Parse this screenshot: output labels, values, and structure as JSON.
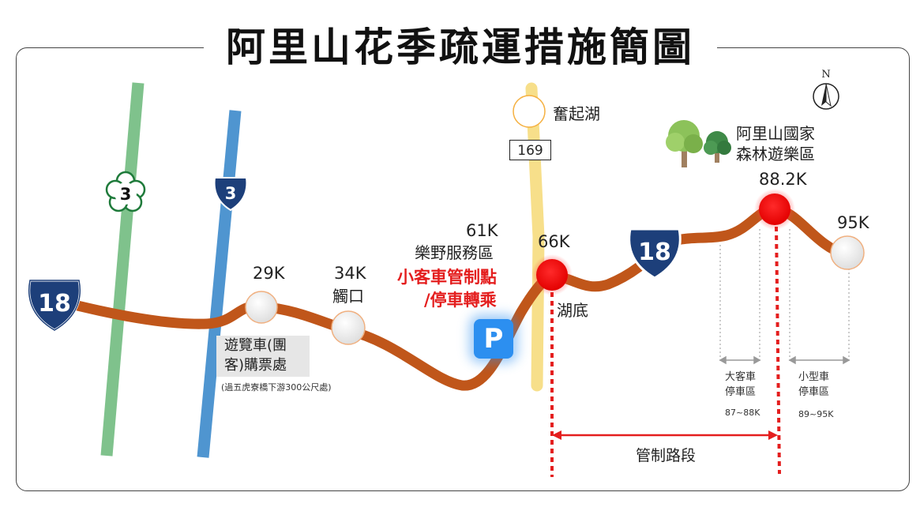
{
  "title": "阿里山花季疏運措施簡圖",
  "compass": "N",
  "routes": {
    "prov18_left": "18",
    "prov18_right": "18",
    "prov3_green": "3",
    "prov3_blue": "3",
    "county169": "169"
  },
  "places": {
    "fenqihu": "奮起湖",
    "forest_line1": "阿里山國家",
    "forest_line2": "森林遊樂區",
    "hudi": "湖底",
    "chukou": "觸口"
  },
  "km_markers": {
    "k29": "29K",
    "k34": "34K",
    "k61": "61K",
    "k66": "66K",
    "k882": "88.2K",
    "k95": "95K"
  },
  "service_area": {
    "name": "樂野服務區",
    "control_line1": "小客車管制點",
    "control_line2": "/停車轉乘",
    "parking_symbol": "P"
  },
  "ticket_office": {
    "line1": "遊覽車(團",
    "line2": "客)購票處",
    "note": "(過五虎寮橋下游300公尺處)"
  },
  "parking_zones": {
    "bus_line1": "大客車",
    "bus_line2": "停車區",
    "bus_range": "87~88K",
    "car_line1": "小型車",
    "car_line2": "停車區",
    "car_range": "89~95K"
  },
  "control_section": "管制路段",
  "colors": {
    "main_road": "#c0561a",
    "route3_green": "#7fc28c",
    "route3_blue": "#4f95d0",
    "route169": "#f7df8a",
    "shield_blue": "#1d3f7a",
    "control_red": "#e41e1e",
    "parking_blue": "#2c8ff0"
  }
}
